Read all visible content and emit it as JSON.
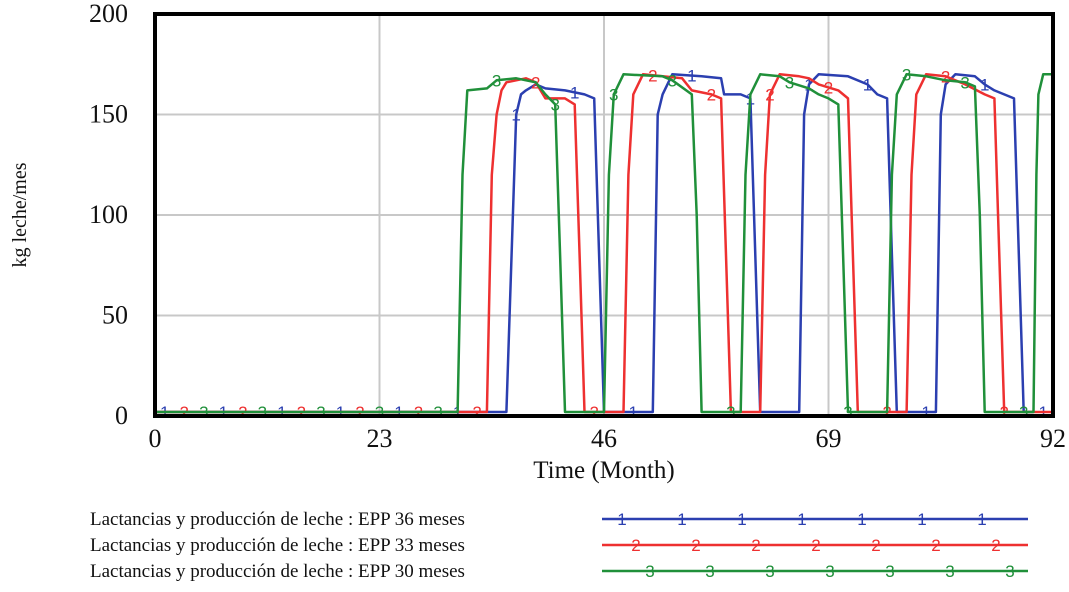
{
  "chart_data": {
    "type": "line",
    "title": "",
    "xlabel": "Time (Month)",
    "ylabel": "kg leche/mes",
    "xlim": [
      0,
      92
    ],
    "ylim": [
      0,
      200
    ],
    "x_ticks": [
      "0",
      "23",
      "46",
      "69",
      "92"
    ],
    "y_ticks": [
      "0",
      "50",
      "100",
      "150",
      "200"
    ],
    "grid": true,
    "legend_position": "bottom",
    "series": [
      {
        "name": "Lactancias y producción de leche : EPP 36 meses",
        "marker": "1",
        "color": "#2b3fb0",
        "points": [
          [
            0,
            2
          ],
          [
            36,
            2
          ],
          [
            37,
            150
          ],
          [
            37.5,
            160
          ],
          [
            38,
            162
          ],
          [
            39,
            165
          ],
          [
            40,
            163
          ],
          [
            42,
            162
          ],
          [
            44,
            160
          ],
          [
            45,
            158
          ],
          [
            45.5,
            80
          ],
          [
            46,
            2
          ],
          [
            51,
            2
          ],
          [
            51.5,
            150
          ],
          [
            52,
            160
          ],
          [
            53,
            170
          ],
          [
            56,
            169
          ],
          [
            58,
            168
          ],
          [
            58.3,
            160
          ],
          [
            60,
            160
          ],
          [
            61,
            158
          ],
          [
            61.5,
            80
          ],
          [
            62,
            2
          ],
          [
            66,
            2
          ],
          [
            66.5,
            150
          ],
          [
            67,
            165
          ],
          [
            68,
            170
          ],
          [
            71,
            169
          ],
          [
            73,
            165
          ],
          [
            74,
            160
          ],
          [
            75,
            158
          ],
          [
            75.5,
            80
          ],
          [
            76,
            2
          ],
          [
            80,
            2
          ],
          [
            80.5,
            150
          ],
          [
            81,
            165
          ],
          [
            82,
            170
          ],
          [
            84,
            169
          ],
          [
            85,
            165
          ],
          [
            86,
            162
          ],
          [
            87,
            160
          ],
          [
            88,
            158
          ],
          [
            89,
            2
          ],
          [
            90,
            2
          ]
        ]
      },
      {
        "name": "Lactancias y producción de leche : EPP 33 meses",
        "marker": "2",
        "color": "#ee3030",
        "points": [
          [
            0,
            2
          ],
          [
            34,
            2
          ],
          [
            34.5,
            120
          ],
          [
            35,
            150
          ],
          [
            35.5,
            162
          ],
          [
            36,
            166
          ],
          [
            38,
            168
          ],
          [
            39,
            166
          ],
          [
            40,
            158
          ],
          [
            42,
            158
          ],
          [
            43,
            155
          ],
          [
            43.5,
            80
          ],
          [
            44,
            2
          ],
          [
            48,
            2
          ],
          [
            48.5,
            120
          ],
          [
            49,
            160
          ],
          [
            50,
            170
          ],
          [
            52,
            169
          ],
          [
            54,
            168
          ],
          [
            55,
            162
          ],
          [
            57,
            160
          ],
          [
            58,
            158
          ],
          [
            58.5,
            80
          ],
          [
            59,
            2
          ],
          [
            62,
            2
          ],
          [
            62.5,
            120
          ],
          [
            63,
            160
          ],
          [
            64,
            170
          ],
          [
            66,
            169
          ],
          [
            67,
            168
          ],
          [
            68,
            165
          ],
          [
            70,
            162
          ],
          [
            71,
            158
          ],
          [
            71.5,
            80
          ],
          [
            72,
            2
          ],
          [
            77,
            2
          ],
          [
            77.5,
            120
          ],
          [
            78,
            160
          ],
          [
            79,
            170
          ],
          [
            81,
            169
          ],
          [
            83,
            165
          ],
          [
            85,
            160
          ],
          [
            86,
            158
          ],
          [
            86.5,
            80
          ],
          [
            87,
            2
          ],
          [
            92,
            2
          ]
        ]
      },
      {
        "name": "Lactancias y producción de leche : EPP 30 meses",
        "marker": "3",
        "color": "#20903a",
        "points": [
          [
            0,
            2
          ],
          [
            31,
            2
          ],
          [
            31.5,
            120
          ],
          [
            32,
            162
          ],
          [
            34,
            163
          ],
          [
            35,
            167
          ],
          [
            37,
            168
          ],
          [
            39,
            166
          ],
          [
            40,
            160
          ],
          [
            41,
            155
          ],
          [
            41.5,
            80
          ],
          [
            42,
            2
          ],
          [
            46,
            2
          ],
          [
            46.5,
            120
          ],
          [
            47,
            160
          ],
          [
            48,
            170
          ],
          [
            52,
            169
          ],
          [
            53,
            167
          ],
          [
            55,
            160
          ],
          [
            55.5,
            100
          ],
          [
            56,
            2
          ],
          [
            60,
            2
          ],
          [
            60.5,
            120
          ],
          [
            61,
            160
          ],
          [
            62,
            170
          ],
          [
            64,
            169
          ],
          [
            65,
            166
          ],
          [
            67,
            163
          ],
          [
            68,
            160
          ],
          [
            69,
            158
          ],
          [
            70,
            155
          ],
          [
            70.5,
            80
          ],
          [
            71,
            2
          ],
          [
            75,
            2
          ],
          [
            75.5,
            120
          ],
          [
            76,
            160
          ],
          [
            77,
            170
          ],
          [
            79,
            169
          ],
          [
            81,
            167
          ],
          [
            83,
            166
          ],
          [
            84,
            164
          ],
          [
            84.5,
            100
          ],
          [
            85,
            2
          ],
          [
            90,
            2
          ],
          [
            90.3,
            120
          ],
          [
            90.5,
            160
          ],
          [
            91,
            170
          ],
          [
            92,
            170
          ]
        ]
      }
    ]
  }
}
